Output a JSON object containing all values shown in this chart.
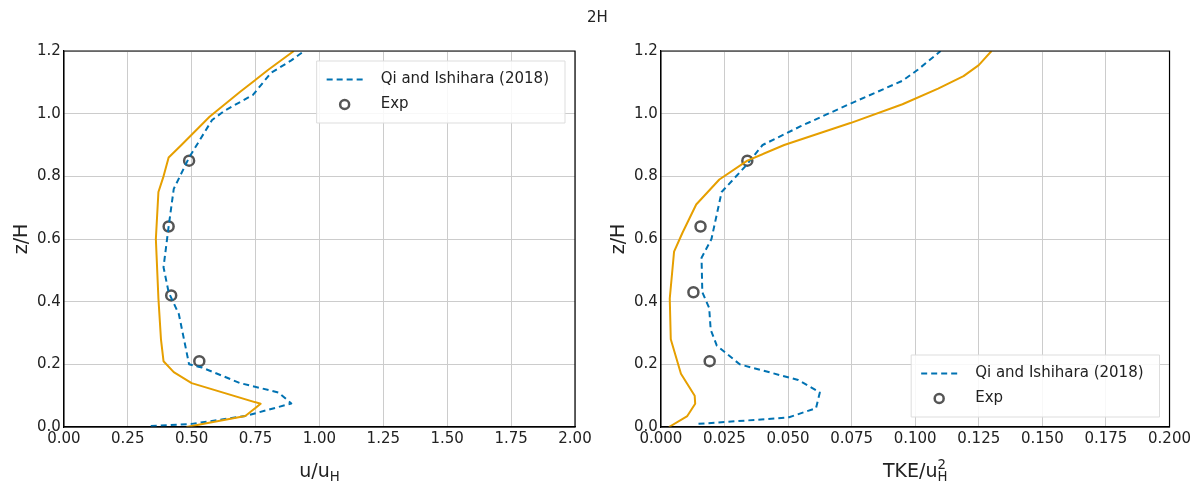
{
  "chart_data": [
    {
      "type": "line",
      "title": "2H",
      "xlabel": "u/u$_{H}$",
      "ylabel": "z/H",
      "xlim": [
        0,
        2
      ],
      "ylim": [
        0,
        1.2
      ],
      "xticks": [
        {
          "value": 0,
          "label": "0.00"
        },
        {
          "value": 0.25,
          "label": "0.25"
        },
        {
          "value": 0.5,
          "label": "0.50"
        },
        {
          "value": 0.75,
          "label": "0.75"
        },
        {
          "value": 1,
          "label": "1.00"
        },
        {
          "value": 1.25,
          "label": "1.25"
        },
        {
          "value": 1.5,
          "label": "1.50"
        },
        {
          "value": 1.75,
          "label": "1.75"
        },
        {
          "value": 2,
          "label": "2.00"
        }
      ],
      "yticks": [
        {
          "value": 0,
          "label": "0.0"
        },
        {
          "value": 0.2,
          "label": "0.2"
        },
        {
          "value": 0.4,
          "label": "0.4"
        },
        {
          "value": 0.6,
          "label": "0.6"
        },
        {
          "value": 0.8,
          "label": "0.8"
        },
        {
          "value": 1,
          "label": "1.0"
        },
        {
          "value": 1.2,
          "label": "1.2"
        }
      ],
      "grid": true,
      "legend": "top right",
      "series": [
        {
          "color": "#e69f00",
          "line_style": "solid",
          "marker": "none",
          "x": [
            0.48,
            0.71,
            0.77,
            0.5,
            0.43,
            0.39,
            0.38,
            0.37,
            0.36,
            0.37,
            0.39,
            0.41,
            0.46,
            0.57,
            0.69,
            0.8,
            0.9
          ],
          "values": [
            0.0,
            0.035,
            0.074,
            0.14,
            0.175,
            0.21,
            0.28,
            0.41,
            0.6,
            0.75,
            0.8,
            0.86,
            0.9,
            0.99,
            1.07,
            1.14,
            1.2
          ]
        },
        {
          "name": "Qi and Ishihara (2018)",
          "color": "#0072b2",
          "line_style": "dashed",
          "marker": "none",
          "x": [
            0.34,
            0.5,
            0.71,
            0.89,
            0.84,
            0.69,
            0.54,
            0.49,
            0.45,
            0.41,
            0.39,
            0.41,
            0.43,
            0.49,
            0.58,
            0.63,
            0.74,
            0.81,
            0.89,
            0.94
          ],
          "values": [
            0.003,
            0.01,
            0.035,
            0.075,
            0.11,
            0.14,
            0.19,
            0.2,
            0.36,
            0.43,
            0.51,
            0.64,
            0.76,
            0.86,
            0.98,
            1.01,
            1.06,
            1.13,
            1.17,
            1.2
          ]
        },
        {
          "type": "scatter",
          "name": "Exp",
          "color": "#555555",
          "marker": "circle",
          "x": [
            0.49,
            0.41,
            0.42,
            0.53
          ],
          "values": [
            0.85,
            0.64,
            0.42,
            0.21
          ]
        }
      ]
    },
    {
      "type": "line",
      "xlabel": "TKE/u$_{H}$$^{2}$",
      "ylabel": "z/H",
      "xlim": [
        0,
        0.2
      ],
      "ylim": [
        0,
        1.2
      ],
      "xticks": [
        {
          "value": 0,
          "label": "0.000"
        },
        {
          "value": 0.025,
          "label": "0.025"
        },
        {
          "value": 0.05,
          "label": "0.050"
        },
        {
          "value": 0.075,
          "label": "0.075"
        },
        {
          "value": 0.1,
          "label": "0.100"
        },
        {
          "value": 0.125,
          "label": "0.125"
        },
        {
          "value": 0.15,
          "label": "0.150"
        },
        {
          "value": 0.175,
          "label": "0.175"
        },
        {
          "value": 0.2,
          "label": "0.200"
        }
      ],
      "yticks": [
        {
          "value": 0,
          "label": "0.0"
        },
        {
          "value": 0.2,
          "label": "0.2"
        },
        {
          "value": 0.4,
          "label": "0.4"
        },
        {
          "value": 0.6,
          "label": "0.6"
        },
        {
          "value": 0.8,
          "label": "0.8"
        },
        {
          "value": 1,
          "label": "1.0"
        },
        {
          "value": 1.2,
          "label": "1.2"
        }
      ],
      "grid": true,
      "legend": "bottom right",
      "series": [
        {
          "color": "#e69f00",
          "line_style": "solid",
          "marker": "none",
          "x": [
            0.0032,
            0.0104,
            0.0135,
            0.0133,
            0.0079,
            0.0039,
            0.0035,
            0.0052,
            0.0085,
            0.0139,
            0.023,
            0.034,
            0.0485,
            0.0745,
            0.095,
            0.109,
            0.119,
            0.125,
            0.13
          ],
          "values": [
            0.0,
            0.035,
            0.074,
            0.1,
            0.17,
            0.28,
            0.41,
            0.56,
            0.62,
            0.71,
            0.79,
            0.85,
            0.9,
            0.97,
            1.03,
            1.08,
            1.12,
            1.155,
            1.2
          ]
        },
        {
          "name": "Qi and Ishihara (2018)",
          "color": "#0072b2",
          "line_style": "dashed",
          "marker": "none",
          "x": [
            0.0148,
            0.05,
            0.061,
            0.0625,
            0.054,
            0.031,
            0.022,
            0.0196,
            0.019,
            0.0163,
            0.016,
            0.0199,
            0.0239,
            0.033,
            0.04,
            0.055,
            0.074,
            0.095,
            0.101,
            0.11
          ],
          "values": [
            0.01,
            0.03,
            0.06,
            0.11,
            0.15,
            0.2,
            0.26,
            0.31,
            0.38,
            0.43,
            0.54,
            0.6,
            0.75,
            0.83,
            0.9,
            0.96,
            1.03,
            1.105,
            1.14,
            1.2
          ]
        },
        {
          "type": "scatter",
          "name": "Exp",
          "color": "#555555",
          "marker": "circle",
          "x": [
            0.034,
            0.0156,
            0.0128,
            0.0192
          ],
          "values": [
            0.85,
            0.64,
            0.43,
            0.21
          ]
        }
      ]
    }
  ]
}
